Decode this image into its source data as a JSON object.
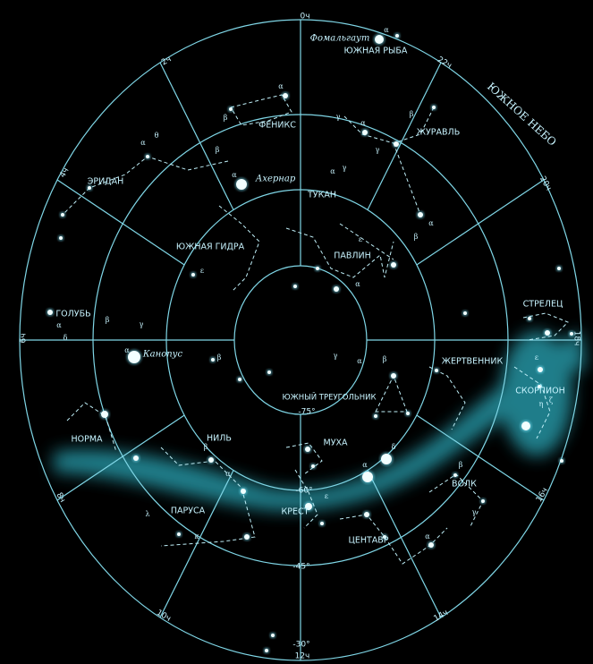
{
  "title": "ЮЖНОЕ НЕБО",
  "hour_labels": [
    "0ч",
    "2ч",
    "4ч",
    "6ч",
    "8ч",
    "10ч",
    "12ч",
    "14ч",
    "16ч",
    "18ч",
    "20ч",
    "22ч"
  ],
  "declination_labels": [
    "-75°",
    "-60°",
    "-45°",
    "-30°"
  ],
  "constellations": [
    "ЮЖНАЯ РЫБА",
    "ФЕНИКС",
    "ЖУРАВЛЬ",
    "ЭРИДАН",
    "ТУКАН",
    "ЮЖНАЯ ГИДРА",
    "ПАВЛИН",
    "ГОЛУБЬ",
    "СТРЕЛЕЦ",
    "ЖЕРТВЕННИК",
    "ЮЖНЫЙ ТРЕУГОЛЬНИК",
    "СКОРПИОН",
    "НОРМА",
    "НИЛЬ",
    "МУХА",
    "ВОЛК",
    "ПАРУСА",
    "КРЕСТ",
    "ЦЕНТАВР"
  ],
  "named_stars": [
    "Фомальгаут",
    "Ахернар",
    "Канопус"
  ],
  "star_letters": [
    "α",
    "α",
    "β",
    "γ",
    "α",
    "β",
    "γ",
    "α",
    "θ",
    "α",
    "β",
    "α",
    "γ",
    "α",
    "β",
    "ε",
    "α",
    "ε",
    "α",
    "β",
    "γ",
    "δ",
    "α",
    "β",
    "γ",
    "α",
    "β",
    "ε",
    "ζ",
    "η",
    "α",
    "β",
    "λ",
    "κ",
    "α",
    "δ",
    "ε",
    "α",
    "β",
    "γ"
  ]
}
